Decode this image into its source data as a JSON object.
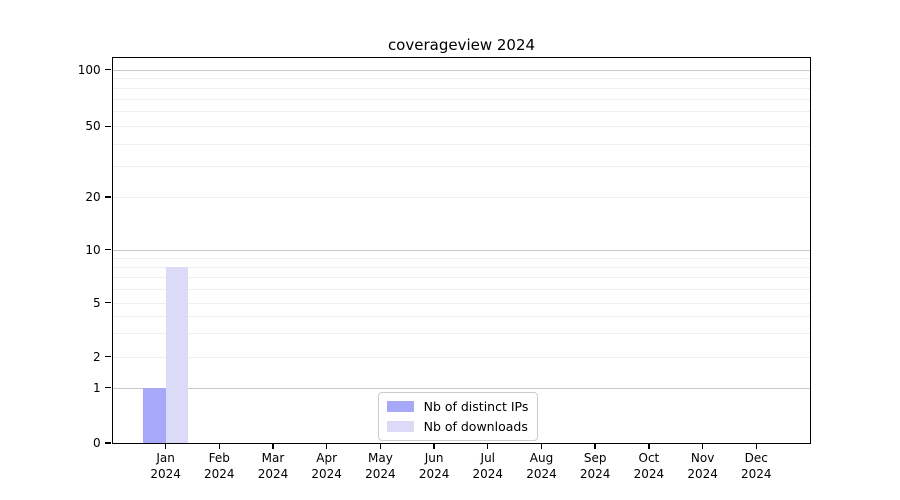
{
  "chart_data": {
    "type": "bar",
    "title": "coverageview 2024",
    "x_year": "2024",
    "categories": [
      "Jan",
      "Feb",
      "Mar",
      "Apr",
      "May",
      "Jun",
      "Jul",
      "Aug",
      "Sep",
      "Oct",
      "Nov",
      "Dec"
    ],
    "series": [
      {
        "name": "Nb of distinct IPs",
        "color": "#a8a8f8",
        "values": [
          1,
          0,
          0,
          0,
          0,
          0,
          0,
          0,
          0,
          0,
          0,
          0
        ]
      },
      {
        "name": "Nb of downloads",
        "color": "#dbdbf8",
        "values": [
          8,
          0,
          0,
          0,
          0,
          0,
          0,
          0,
          0,
          0,
          0,
          0
        ]
      }
    ],
    "y_axis": {
      "scale": "symlog",
      "ticks": [
        0,
        1,
        2,
        5,
        10,
        20,
        50,
        100
      ],
      "tick_labels": [
        "0",
        "1",
        "2",
        "5",
        "10",
        "20",
        "50",
        "100"
      ],
      "major_gridlines": [
        1,
        10,
        100
      ],
      "minor_gridlines": [
        2,
        3,
        4,
        5,
        6,
        7,
        8,
        9,
        20,
        30,
        40,
        50,
        60,
        70,
        80,
        90
      ]
    },
    "legend": {
      "position": "lower center",
      "entries": [
        "Nb of distinct IPs",
        "Nb of downloads"
      ]
    },
    "grid": "on",
    "colors": {
      "major_grid": "#c9c9c9",
      "minor_grid": "#efefef",
      "spine": "#000000",
      "text": "#000000",
      "legend_border": "#cccccc",
      "background": "#ffffff"
    }
  }
}
